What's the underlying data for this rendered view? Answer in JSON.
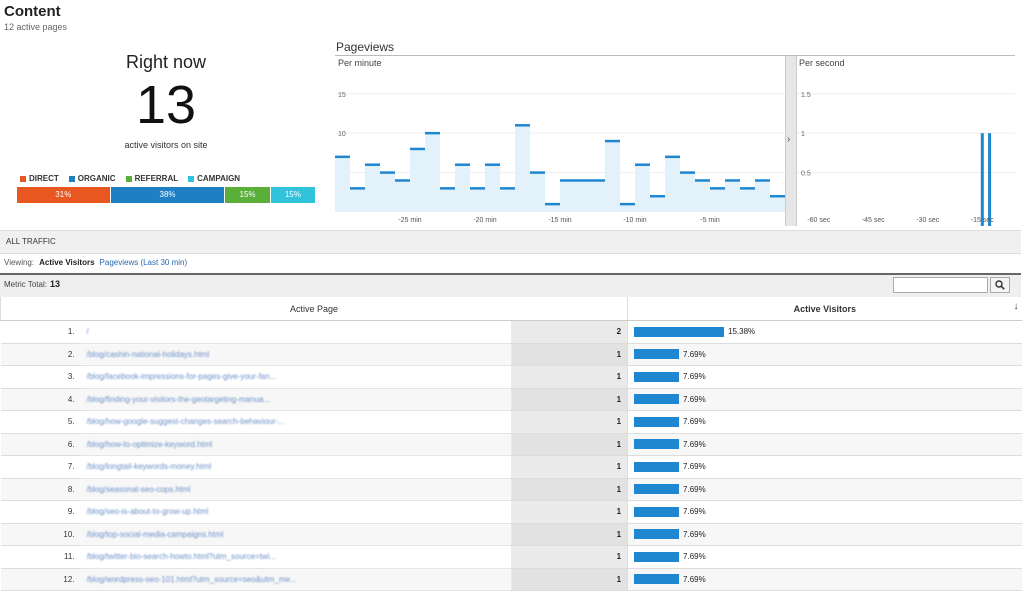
{
  "header": {
    "title": "Content",
    "subtitle": "12 active pages"
  },
  "right_now": {
    "title": "Right now",
    "count": "13",
    "label": "active visitors on site",
    "legend": [
      {
        "label": "DIRECT",
        "color": "#e8571f"
      },
      {
        "label": "ORGANIC",
        "color": "#1f7fc4"
      },
      {
        "label": "REFERRAL",
        "color": "#5aae3a"
      },
      {
        "label": "CAMPAIGN",
        "color": "#30c3db"
      }
    ],
    "segments": [
      {
        "label": "31%",
        "value": 31,
        "color": "#e8571f"
      },
      {
        "label": "38%",
        "value": 38,
        "color": "#1f7fc4"
      },
      {
        "label": "15%",
        "value": 15,
        "color": "#5aae3a"
      },
      {
        "label": "15%",
        "value": 15,
        "color": "#30c3db"
      }
    ]
  },
  "pageviews": {
    "title": "Pageviews",
    "per_minute_label": "Per minute",
    "per_second_label": "Per second"
  },
  "chart_data": [
    {
      "type": "area",
      "title": "Per minute",
      "ylim": [
        0,
        17
      ],
      "yticks": [
        "5",
        "10",
        "15"
      ],
      "ytick_values": [
        5,
        10,
        15
      ],
      "xticks": [
        "-25 min",
        "-20 min",
        "-15 min",
        "-10 min",
        "-5 min"
      ],
      "xtick_minutes": [
        -25,
        -20,
        -15,
        -10,
        -5
      ],
      "x": [
        -30,
        -29,
        -28,
        -27,
        -26,
        -25,
        -24,
        -23,
        -22,
        -21,
        -20,
        -19,
        -18,
        -17,
        -16,
        -15,
        -14,
        -13,
        -12,
        -11,
        -10,
        -9,
        -8,
        -7,
        -6,
        -5,
        -4,
        -3,
        -2,
        -1
      ],
      "values": [
        7,
        3,
        6,
        5,
        4,
        8,
        10,
        3,
        6,
        3,
        6,
        3,
        11,
        5,
        1,
        4,
        4,
        4,
        9,
        1,
        6,
        2,
        7,
        5,
        4,
        3,
        4,
        3,
        4,
        2
      ],
      "color": "#1f86d0"
    },
    {
      "type": "bar",
      "title": "Per second",
      "ylim": [
        0,
        1.7
      ],
      "yticks": [
        "0.5",
        "1",
        "1.5"
      ],
      "ytick_values": [
        0.5,
        1,
        1.5
      ],
      "xticks": [
        "-60 sec",
        "-45 sec",
        "-30 sec",
        "-15 sec"
      ],
      "xtick_seconds": [
        -60,
        -45,
        -30,
        -15
      ],
      "x": [
        -15,
        -13
      ],
      "values": [
        1,
        1
      ],
      "color": "#1f86d0"
    }
  ],
  "traffic": {
    "label": "ALL TRAFFIC"
  },
  "viewing": {
    "label": "Viewing:",
    "active": "Active Visitors",
    "link": "Pageviews (Last 30 min)"
  },
  "metric": {
    "label": "Metric Total:",
    "value": "13"
  },
  "search": {
    "placeholder": ""
  },
  "table": {
    "col_page": "Active Page",
    "col_visitors": "Active Visitors",
    "sort_icon": "arrow-down-icon",
    "rows": [
      {
        "idx": "1.",
        "page": "/",
        "count": "2",
        "pct": "15.38%",
        "share": 0.1538
      },
      {
        "idx": "2.",
        "page": "/blog/cashin-national-holidays.html",
        "count": "1",
        "pct": "7.69%",
        "share": 0.0769
      },
      {
        "idx": "3.",
        "page": "/blog/facebook-impressions-for-pages-give-your-fan...",
        "count": "1",
        "pct": "7.69%",
        "share": 0.0769
      },
      {
        "idx": "4.",
        "page": "/blog/finding-your-visitors-the-geotargeting-manua...",
        "count": "1",
        "pct": "7.69%",
        "share": 0.0769
      },
      {
        "idx": "5.",
        "page": "/blog/how-google-suggest-changes-search-behaviour-...",
        "count": "1",
        "pct": "7.69%",
        "share": 0.0769
      },
      {
        "idx": "6.",
        "page": "/blog/how-to-optimize-keyword.html",
        "count": "1",
        "pct": "7.69%",
        "share": 0.0769
      },
      {
        "idx": "7.",
        "page": "/blog/longtail-keywords-money.html",
        "count": "1",
        "pct": "7.69%",
        "share": 0.0769
      },
      {
        "idx": "8.",
        "page": "/blog/seasonal-seo-cops.html",
        "count": "1",
        "pct": "7.69%",
        "share": 0.0769
      },
      {
        "idx": "9.",
        "page": "/blog/seo-is-about-to-grow-up.html",
        "count": "1",
        "pct": "7.69%",
        "share": 0.0769
      },
      {
        "idx": "10.",
        "page": "/blog/top-social-media-campaigns.html",
        "count": "1",
        "pct": "7.69%",
        "share": 0.0769
      },
      {
        "idx": "11.",
        "page": "/blog/twitter-bio-search-howto.html?utm_source=twi...",
        "count": "1",
        "pct": "7.69%",
        "share": 0.0769
      },
      {
        "idx": "12.",
        "page": "/blog/wordpress-seo-101.html?utm_source=seo&utm_me...",
        "count": "1",
        "pct": "7.69%",
        "share": 0.0769
      }
    ]
  }
}
